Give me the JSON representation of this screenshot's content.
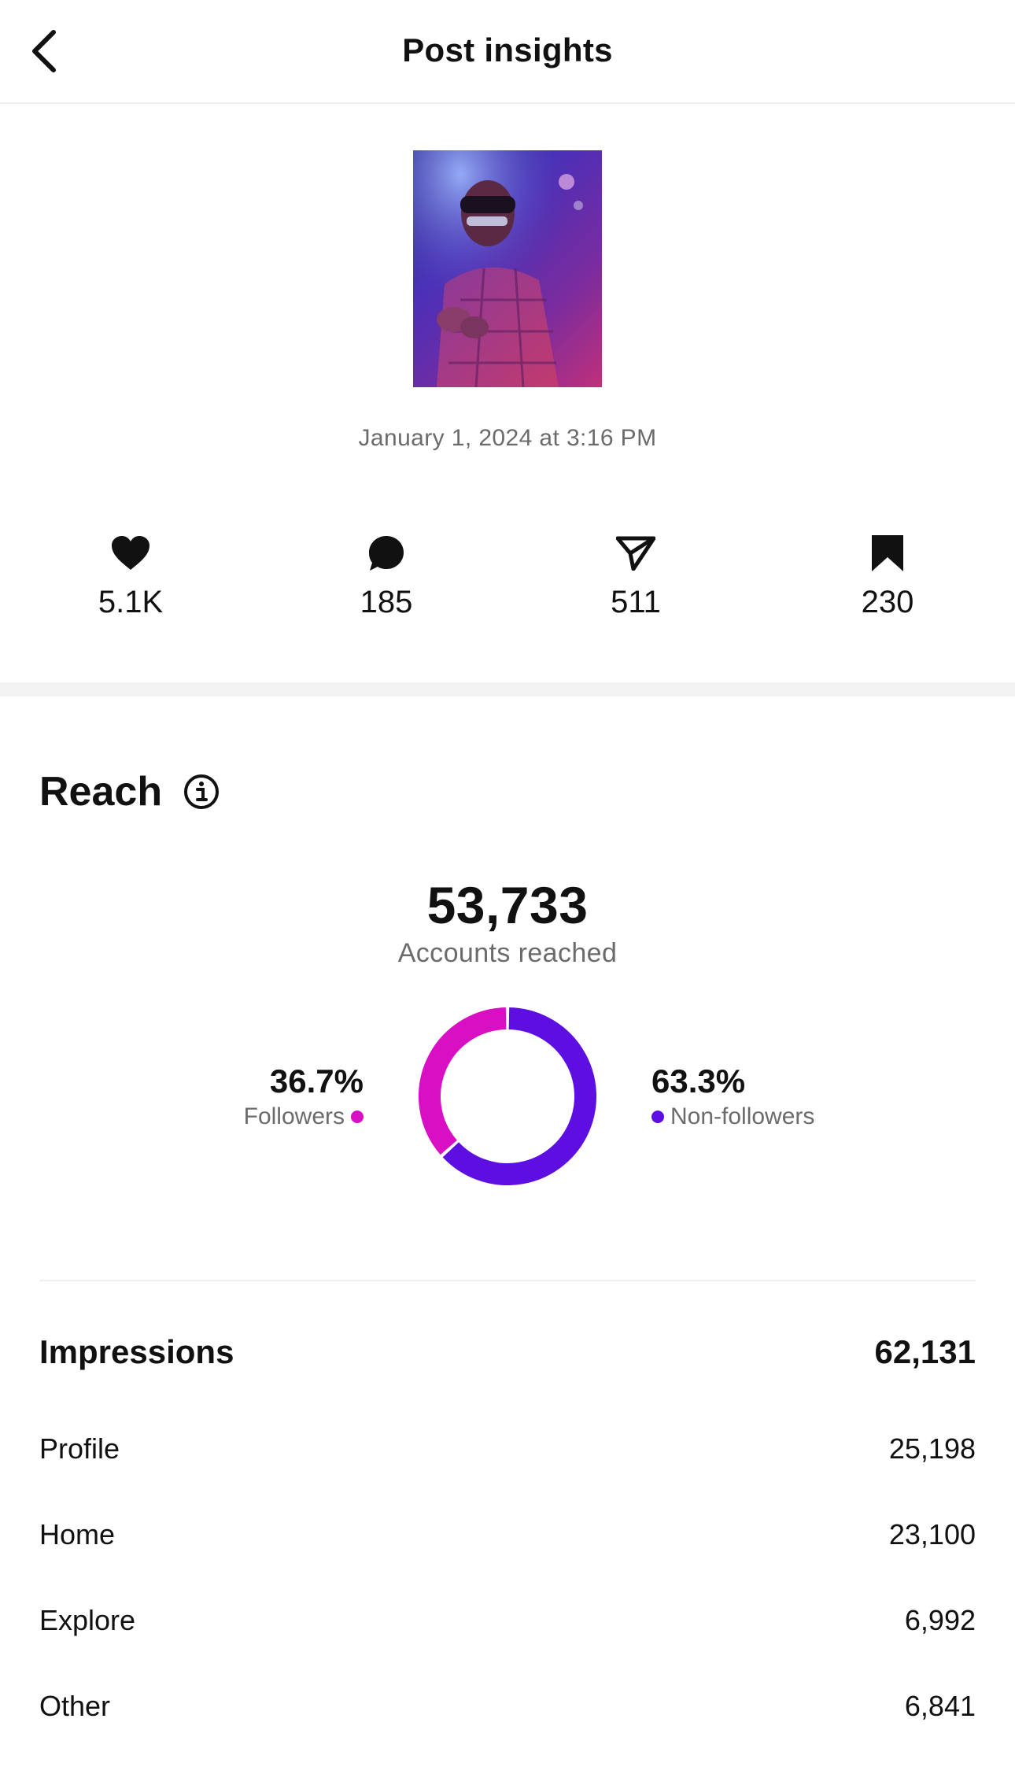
{
  "header": {
    "title": "Post insights",
    "back_icon": "chevron-left-icon"
  },
  "post": {
    "date": "January 1, 2024 at 3:16 PM"
  },
  "stats": [
    {
      "icon": "heart-icon",
      "value": "5.1K"
    },
    {
      "icon": "comment-icon",
      "value": "185"
    },
    {
      "icon": "send-icon",
      "value": "511"
    },
    {
      "icon": "bookmark-icon",
      "value": "230"
    }
  ],
  "reach": {
    "title": "Reach",
    "info_icon": "info-icon",
    "accounts_reached": "53,733",
    "accounts_reached_label": "Accounts reached",
    "followers_pct_label": "36.7%",
    "followers_label": "Followers",
    "non_followers_pct_label": "63.3%",
    "non_followers_label": "Non-followers",
    "followers_color": "#d90fc4",
    "non_followers_color": "#5c0fe0"
  },
  "chart_data": {
    "type": "pie",
    "categories": [
      "Followers",
      "Non-followers"
    ],
    "values": [
      36.7,
      63.3
    ],
    "colors": [
      "#d90fc4",
      "#5c0fe0"
    ],
    "title": "",
    "style": "donut"
  },
  "impressions": {
    "label": "Impressions",
    "total": "62,131",
    "rows": [
      {
        "label": "Profile",
        "value": "25,198"
      },
      {
        "label": "Home",
        "value": "23,100"
      },
      {
        "label": "Explore",
        "value": "6,992"
      },
      {
        "label": "Other",
        "value": "6,841"
      }
    ]
  }
}
